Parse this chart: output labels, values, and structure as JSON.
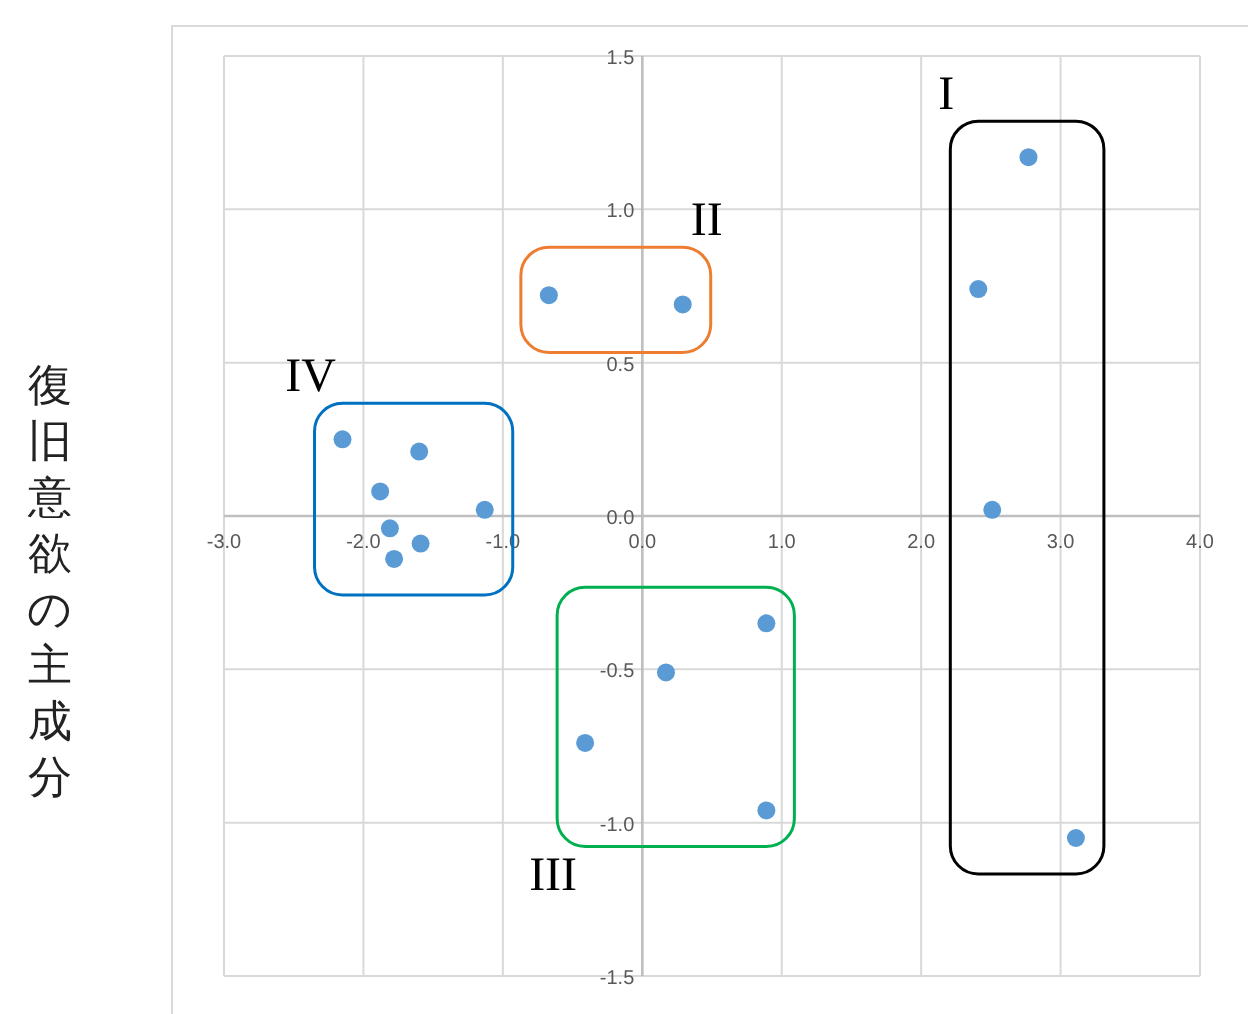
{
  "chart_data": {
    "type": "scatter",
    "ylabel": "復旧意欲の主成分",
    "marker": "circle",
    "grid": true,
    "xlim": [
      -3,
      4
    ],
    "ylim": [
      -1.5,
      1.5
    ],
    "xticks": [
      {
        "value": -3,
        "label": "-3.0"
      },
      {
        "value": -2,
        "label": "-2.0"
      },
      {
        "value": -1,
        "label": "-1.0"
      },
      {
        "value": 0,
        "label": "0.0"
      },
      {
        "value": 1,
        "label": "1.0"
      },
      {
        "value": 2,
        "label": "2.0"
      },
      {
        "value": 3,
        "label": "3.0"
      },
      {
        "value": 4,
        "label": "4.0"
      }
    ],
    "yticks": [
      {
        "value": -1.5,
        "label": "-1.5"
      },
      {
        "value": -1,
        "label": "-1.0"
      },
      {
        "value": -0.5,
        "label": "-0.5"
      },
      {
        "value": 0,
        "label": "0.0"
      },
      {
        "value": 0.5,
        "label": "0.5"
      },
      {
        "value": 1,
        "label": "1.0"
      },
      {
        "value": 1.5,
        "label": "1.5"
      }
    ],
    "series": [
      {
        "color": "#5b9bd5",
        "x": [
          2.77,
          2.41,
          2.51,
          3.11
        ],
        "values": [
          1.17,
          0.74,
          0.02,
          -1.05
        ]
      },
      {
        "color": "#5b9bd5",
        "x": [
          -0.67,
          0.29
        ],
        "values": [
          0.72,
          0.69
        ]
      },
      {
        "color": "#5b9bd5",
        "x": [
          0.89,
          0.17,
          -0.41,
          0.89
        ],
        "values": [
          -0.35,
          -0.51,
          -0.74,
          -0.96
        ]
      },
      {
        "color": "#5b9bd5",
        "x": [
          -2.15,
          -1.6,
          -1.88,
          -1.13,
          -1.81,
          -1.59,
          -1.78
        ],
        "values": [
          0.25,
          0.21,
          0.08,
          0.02,
          -0.04,
          -0.09,
          -0.14
        ]
      }
    ],
    "annotations": [
      "I",
      "II",
      "III",
      "IV"
    ]
  }
}
